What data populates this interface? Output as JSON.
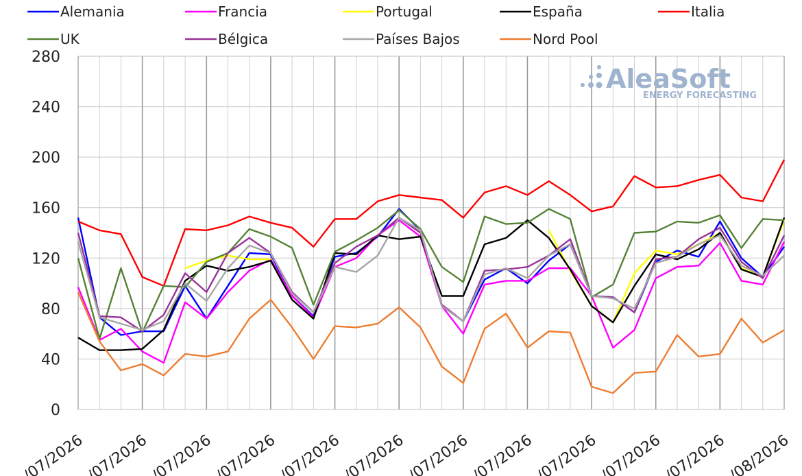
{
  "watermark": {
    "name": "AleaSoft",
    "tagline": "ENERGY FORECASTING"
  },
  "chart_data": {
    "type": "line",
    "title": "",
    "xlabel": "",
    "ylabel": "",
    "ylim": [
      0,
      280
    ],
    "yticks": [
      0,
      40,
      80,
      120,
      160,
      200,
      240,
      280
    ],
    "grid": true,
    "legend_position": "top",
    "x_tick_labels": [
      "/07/2026",
      "/07/2026",
      "/07/2026",
      "/07/2026",
      "/07/2026",
      "/07/2026",
      "/07/2026",
      "/07/2026",
      "/07/2026",
      "/07/2026",
      "/07/2026",
      "/08/2026"
    ],
    "series": [
      {
        "name": "Alemania",
        "color": "#0000ff",
        "values": [
          152,
          73,
          59,
          62,
          62,
          98,
          72,
          98,
          124,
          123,
          90,
          74,
          121,
          124,
          137,
          159,
          142,
          82,
          70,
          103,
          112,
          100,
          118,
          131,
          90,
          89,
          77,
          117,
          126,
          121,
          149,
          120,
          105,
          129
        ]
      },
      {
        "name": "Francia",
        "color": "#ff00ff",
        "values": [
          97,
          55,
          64,
          46,
          37,
          85,
          72,
          93,
          110,
          119,
          90,
          73,
          113,
          120,
          138,
          150,
          137,
          82,
          60,
          99,
          102,
          102,
          112,
          112,
          90,
          49,
          63,
          104,
          113,
          114,
          132,
          102,
          99,
          133
        ]
      },
      {
        "name": "Portugal",
        "color": "#ffff00",
        "values": [
          null,
          null,
          null,
          null,
          null,
          112,
          118,
          122,
          119,
          119,
          null,
          null,
          null,
          null,
          null,
          null,
          null,
          null,
          null,
          null,
          null,
          null,
          142,
          110,
          82,
          69,
          108,
          126,
          123,
          131,
          140,
          112,
          105,
          150
        ]
      },
      {
        "name": "España",
        "color": "#000000",
        "values": [
          57,
          47,
          47,
          48,
          63,
          102,
          114,
          110,
          113,
          118,
          87,
          72,
          124,
          123,
          138,
          135,
          137,
          90,
          90,
          131,
          136,
          150,
          136,
          111,
          82,
          69,
          98,
          123,
          119,
          127,
          140,
          111,
          105,
          152
        ]
      },
      {
        "name": "Italia",
        "color": "#ff0000",
        "values": [
          149,
          142,
          139,
          105,
          98,
          143,
          142,
          146,
          153,
          148,
          144,
          129,
          151,
          151,
          165,
          170,
          168,
          166,
          152,
          172,
          177,
          170,
          181,
          170,
          157,
          161,
          185,
          176,
          177,
          182,
          186,
          168,
          165,
          198
        ]
      },
      {
        "name": "UK",
        "color": "#548235",
        "values": [
          120,
          56,
          112,
          61,
          98,
          97,
          117,
          124,
          143,
          137,
          128,
          83,
          125,
          134,
          144,
          158,
          143,
          113,
          101,
          153,
          147,
          148,
          159,
          151,
          89,
          99,
          140,
          141,
          149,
          148,
          154,
          128,
          151,
          150
        ]
      },
      {
        "name": "Bélgica",
        "color": "#993399",
        "values": [
          140,
          74,
          73,
          62,
          75,
          108,
          93,
          124,
          136,
          124,
          93,
          77,
          116,
          129,
          138,
          152,
          140,
          83,
          70,
          110,
          111,
          113,
          122,
          135,
          90,
          89,
          77,
          119,
          121,
          135,
          144,
          117,
          104,
          138
        ]
      },
      {
        "name": "Países Bajos",
        "color": "#a6a6a6",
        "values": [
          133,
          73,
          68,
          63,
          70,
          100,
          86,
          112,
          130,
          124,
          92,
          77,
          113,
          109,
          122,
          152,
          142,
          82,
          70,
          107,
          112,
          104,
          122,
          131,
          90,
          88,
          80,
          116,
          121,
          131,
          138,
          114,
          106,
          122
        ]
      },
      {
        "name": "Nord Pool",
        "color": "#ed7d31",
        "values": [
          93,
          54,
          31,
          36,
          27,
          44,
          42,
          46,
          72,
          87,
          65,
          40,
          66,
          65,
          68,
          81,
          65,
          34,
          21,
          64,
          76,
          49,
          62,
          61,
          18,
          13,
          29,
          30,
          59,
          42,
          44,
          72,
          53,
          63
        ]
      }
    ]
  }
}
